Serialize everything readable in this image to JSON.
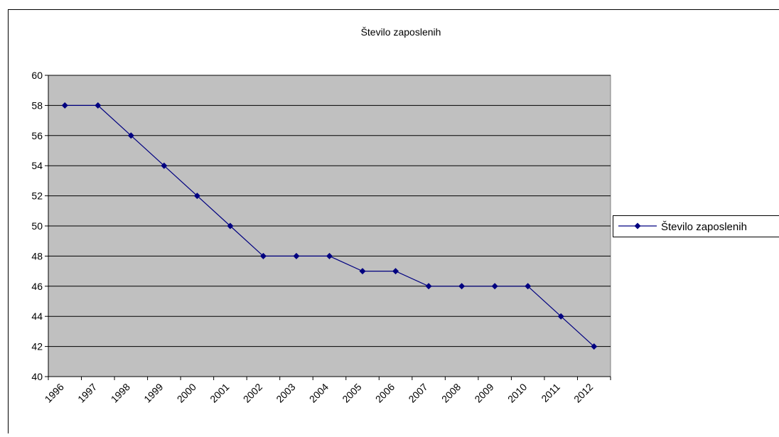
{
  "chart_data": {
    "type": "line",
    "title": "Število zaposlenih",
    "categories": [
      "1996",
      "1997",
      "1998",
      "1999",
      "2000",
      "2001",
      "2002",
      "2003",
      "2004",
      "2005",
      "2006",
      "2007",
      "2008",
      "2009",
      "2010",
      "2011",
      "2012"
    ],
    "series": [
      {
        "name": "Število zaposlenih",
        "color": "#000080",
        "values": [
          58,
          58,
          56,
          54,
          52,
          50,
          48,
          48,
          48,
          47,
          47,
          46,
          46,
          46,
          46,
          44,
          42
        ]
      }
    ],
    "ylim": [
      40,
      60
    ],
    "yticks": [
      40,
      42,
      44,
      46,
      48,
      50,
      52,
      54,
      56,
      58,
      60
    ],
    "grid": true,
    "legend": "right"
  }
}
